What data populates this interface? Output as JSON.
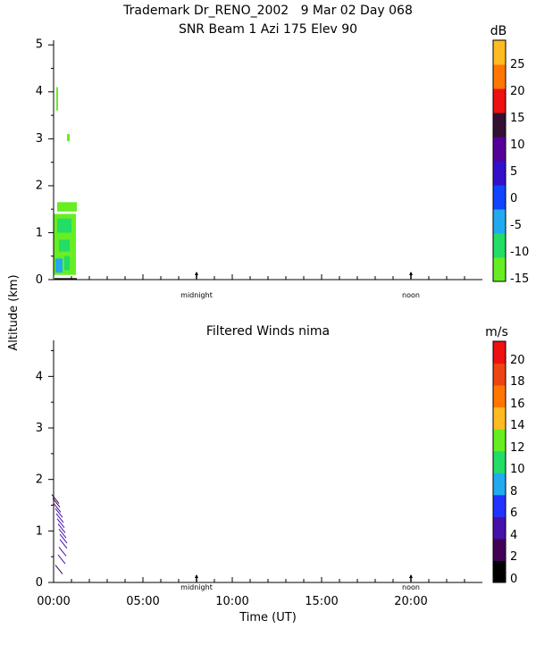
{
  "header": {
    "line1": "Trademark Dr_RENO_2002   9 Mar 02 Day 068",
    "line2": "SNR Beam 1 Azi 175 Elev 90"
  },
  "shared": {
    "ylabel": "Altitude (km)",
    "xlabel": "Time (UT)",
    "x_ticks": [
      "00:00",
      "05:00",
      "10:00",
      "15:00",
      "20:00"
    ],
    "markers": [
      "midnight",
      "noon"
    ]
  },
  "chart_data": [
    {
      "type": "heatmap",
      "title": "SNR Beam 1 Azi 175 Elev 90",
      "colorbar_unit": "dB",
      "colorbar_ticks": [
        "25",
        "20",
        "15",
        "10",
        "5",
        "0",
        "-5",
        "-10",
        "-15"
      ],
      "colorbar_range": [
        -15,
        30
      ],
      "colorbar_colors": [
        "#66ee22",
        "#22dd66",
        "#22aaee",
        "#1144ff",
        "#3311cc",
        "#550099",
        "#331133",
        "#ee1111",
        "#ff7700",
        "#ffbb22"
      ],
      "y_ticks": [
        0,
        1,
        2,
        3,
        4,
        5
      ],
      "ylim": [
        0,
        5.1
      ],
      "xlim_hours": [
        0,
        24
      ],
      "markers": [
        {
          "label": "midnight",
          "hour": 8
        },
        {
          "label": "noon",
          "hour": 20
        }
      ],
      "cells": [
        {
          "t0": 0.0,
          "t1": 1.25,
          "z0": 0.1,
          "z1": 0.55,
          "snr": -12
        },
        {
          "t0": 0.0,
          "t1": 1.25,
          "z0": 0.55,
          "z1": 1.4,
          "snr": -13
        },
        {
          "t0": 0.2,
          "t1": 1.3,
          "z0": 1.45,
          "z1": 1.65,
          "snr": -14
        },
        {
          "t0": 0.1,
          "t1": 0.5,
          "z0": 0.15,
          "z1": 0.45,
          "snr": -6
        },
        {
          "t0": 0.6,
          "t1": 0.9,
          "z0": 0.2,
          "z1": 0.5,
          "snr": -7
        },
        {
          "t0": 0.3,
          "t1": 0.9,
          "z0": 0.6,
          "z1": 0.85,
          "snr": -9
        },
        {
          "t0": 0.2,
          "t1": 1.0,
          "z0": 1.0,
          "z1": 1.3,
          "snr": -9
        },
        {
          "t0": 0.15,
          "t1": 0.25,
          "z0": 3.6,
          "z1": 4.1,
          "snr": -14
        },
        {
          "t0": 0.75,
          "t1": 0.9,
          "z0": 2.95,
          "z1": 3.1,
          "snr": -14
        }
      ]
    },
    {
      "type": "scatter",
      "title": "Filtered Winds nima",
      "colorbar_unit": "m/s",
      "colorbar_ticks": [
        "20",
        "18",
        "16",
        "14",
        "12",
        "10",
        "8",
        "6",
        "4",
        "2",
        "0"
      ],
      "colorbar_range": [
        0,
        22
      ],
      "colorbar_colors": [
        "#000000",
        "#440055",
        "#4411aa",
        "#2233ff",
        "#22aaee",
        "#22dd66",
        "#66ee22",
        "#ffbb22",
        "#ff7700",
        "#ee4411",
        "#ee1111"
      ],
      "y_ticks": [
        0,
        1,
        2,
        3,
        4
      ],
      "ylim": [
        0,
        4.7
      ],
      "xlim_hours": [
        0,
        24
      ],
      "markers": [
        {
          "label": "midnight",
          "hour": 8
        },
        {
          "label": "noon",
          "hour": 20
        }
      ],
      "barbs": [
        {
          "t": 0.3,
          "z": 0.25,
          "speed": 3
        },
        {
          "t": 0.45,
          "z": 0.45,
          "speed": 4
        },
        {
          "t": 0.5,
          "z": 0.6,
          "speed": 4
        },
        {
          "t": 0.55,
          "z": 0.75,
          "speed": 4
        },
        {
          "t": 0.55,
          "z": 0.85,
          "speed": 4
        },
        {
          "t": 0.5,
          "z": 0.95,
          "speed": 5
        },
        {
          "t": 0.45,
          "z": 1.05,
          "speed": 5
        },
        {
          "t": 0.4,
          "z": 1.15,
          "speed": 5
        },
        {
          "t": 0.35,
          "z": 1.25,
          "speed": 4
        },
        {
          "t": 0.3,
          "z": 1.35,
          "speed": 4
        },
        {
          "t": 0.2,
          "z": 1.45,
          "speed": 4
        },
        {
          "t": 0.15,
          "z": 1.55,
          "speed": 3
        },
        {
          "t": 0.1,
          "z": 1.62,
          "speed": 3
        }
      ]
    }
  ]
}
